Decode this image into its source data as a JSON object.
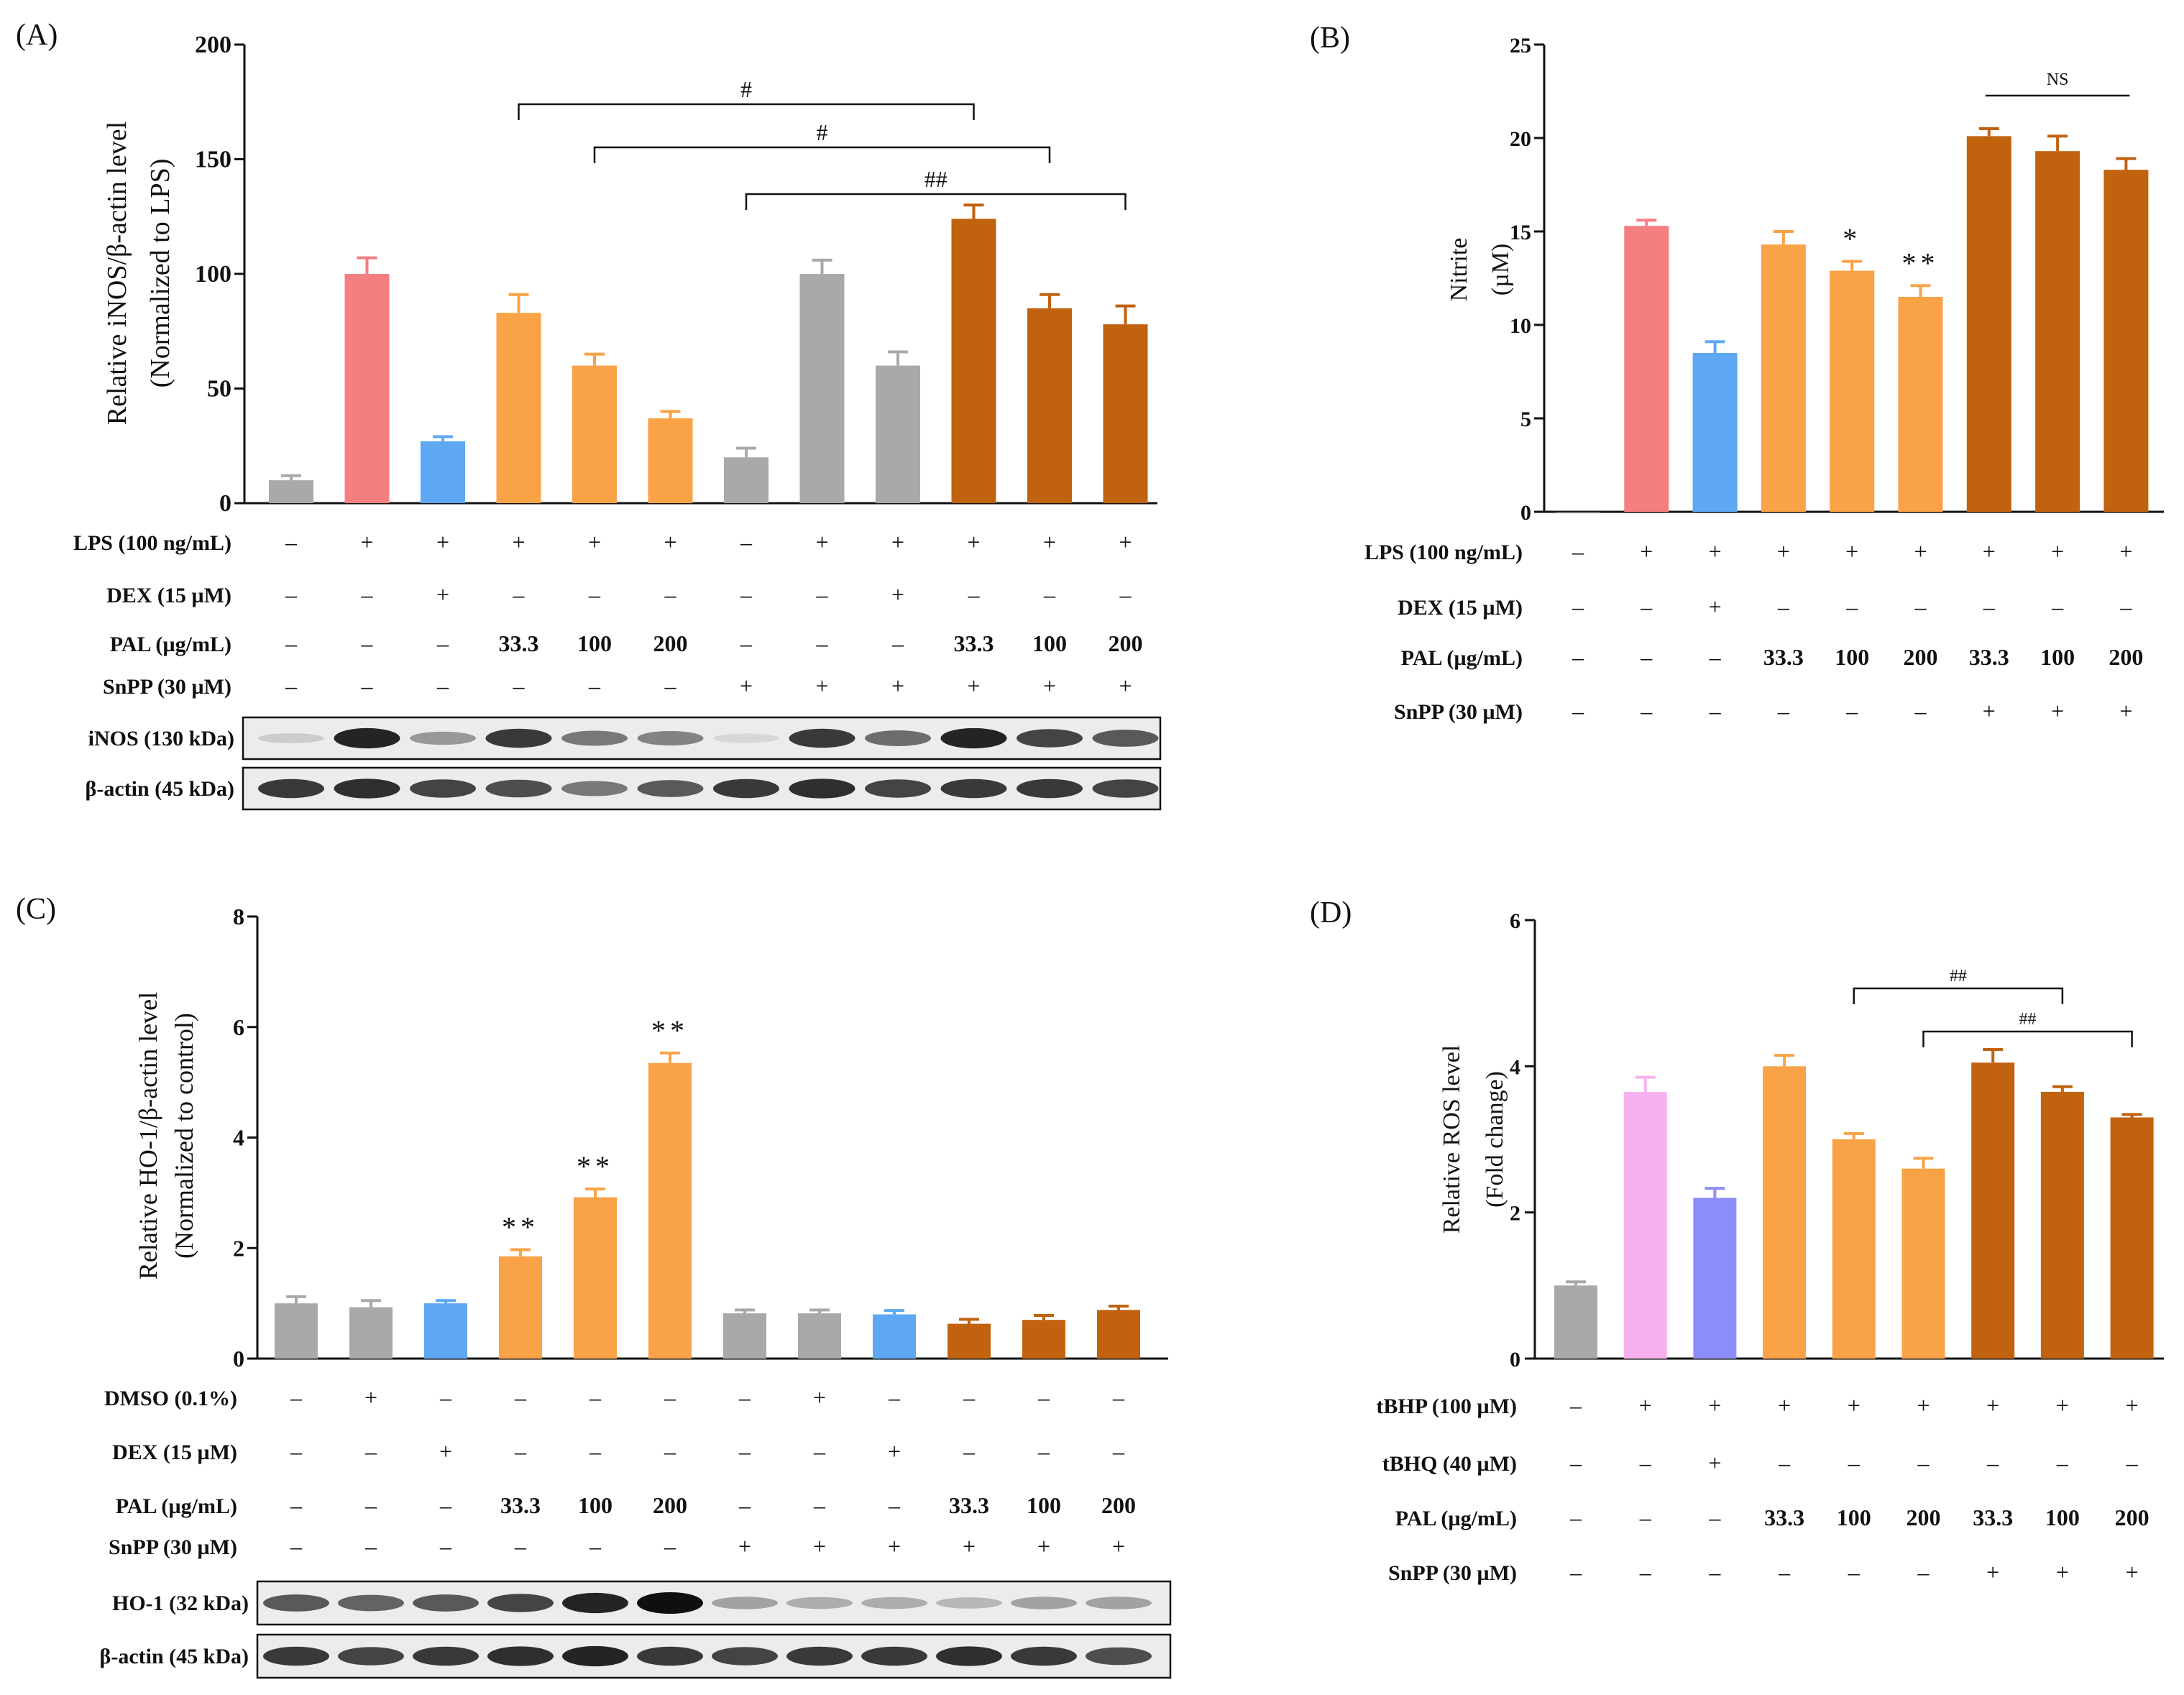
{
  "chart_data": [
    {
      "panel": "(A)",
      "type": "bar",
      "ylabel": [
        "Relative iNOS/β-actin level",
        "(Normalized to LPS)"
      ],
      "ylim": [
        0,
        200
      ],
      "yticks": [
        0,
        50,
        100,
        150,
        200
      ],
      "values": [
        10,
        100,
        27,
        83,
        60,
        37,
        20,
        100,
        60,
        124,
        85,
        78
      ],
      "errors": [
        2,
        7,
        2,
        8,
        5,
        3,
        4,
        6,
        6,
        6,
        6,
        8
      ],
      "colors": [
        "#a9a9ab",
        "#f47f81",
        "#5ea7f2",
        "#f9a246",
        "#f9a246",
        "#f9a246",
        "#a9a9ab",
        "#a9a9ab",
        "#a9a9ab",
        "#c1620f",
        "#c1620f",
        "#c1620f"
      ],
      "treatments": [
        {
          "label": "LPS (100 ng/mL)",
          "cells": [
            "–",
            "+",
            "+",
            "+",
            "+",
            "+",
            "–",
            "+",
            "+",
            "+",
            "+",
            "+"
          ]
        },
        {
          "label": "DEX (15 µM)",
          "cells": [
            "–",
            "–",
            "+",
            "–",
            "–",
            "–",
            "–",
            "–",
            "+",
            "–",
            "–",
            "–"
          ]
        },
        {
          "label": "PAL (µg/mL)",
          "cells": [
            "–",
            "–",
            "–",
            "33.3",
            "100",
            "200",
            "–",
            "–",
            "–",
            "33.3",
            "100",
            "200"
          ]
        },
        {
          "label": "SnPP (30 µM)",
          "cells": [
            "–",
            "–",
            "–",
            "–",
            "–",
            "–",
            "+",
            "+",
            "+",
            "+",
            "+",
            "+"
          ]
        }
      ],
      "brackets": [
        {
          "from": 3,
          "to": 9,
          "label": "#"
        },
        {
          "from": 4,
          "to": 10,
          "label": "#"
        },
        {
          "from": 6,
          "to": 11,
          "label": "##"
        }
      ],
      "blots": [
        {
          "label": "iNOS (130 kDa)",
          "intensity": [
            0.1,
            0.9,
            0.35,
            0.8,
            0.5,
            0.45,
            0.05,
            0.8,
            0.55,
            0.9,
            0.75,
            0.65
          ]
        },
        {
          "label": "β-actin (45 kDa)",
          "intensity": [
            0.8,
            0.85,
            0.75,
            0.7,
            0.5,
            0.65,
            0.8,
            0.85,
            0.75,
            0.8,
            0.8,
            0.75
          ]
        }
      ]
    },
    {
      "panel": "(B)",
      "type": "bar",
      "ylabel": [
        "Nitrite",
        "(µM)"
      ],
      "ylim": [
        0,
        25
      ],
      "yticks": [
        0,
        5,
        10,
        15,
        20,
        25
      ],
      "values": [
        0,
        15.3,
        8.5,
        14.3,
        12.9,
        11.5,
        20.1,
        19.3,
        18.3
      ],
      "errors": [
        0,
        0.3,
        0.6,
        0.7,
        0.5,
        0.6,
        0.4,
        0.8,
        0.6
      ],
      "colors": [
        "#a9a9ab",
        "#f47f81",
        "#5ea7f2",
        "#f9a246",
        "#f9a246",
        "#f9a246",
        "#c1620f",
        "#c1620f",
        "#c1620f"
      ],
      "annotations": [
        "",
        "",
        "",
        "",
        "*",
        "**",
        "",
        "",
        ""
      ],
      "treatments": [
        {
          "label": "LPS (100 ng/mL)",
          "cells": [
            "–",
            "+",
            "+",
            "+",
            "+",
            "+",
            "+",
            "+",
            "+"
          ]
        },
        {
          "label": "DEX (15 µM)",
          "cells": [
            "–",
            "–",
            "+",
            "–",
            "–",
            "–",
            "–",
            "–",
            "–"
          ]
        },
        {
          "label": "PAL (µg/mL)",
          "cells": [
            "–",
            "–",
            "–",
            "33.3",
            "100",
            "200",
            "33.3",
            "100",
            "200"
          ]
        },
        {
          "label": "SnPP (30 µM)",
          "cells": [
            "–",
            "–",
            "–",
            "–",
            "–",
            "–",
            "+",
            "+",
            "+"
          ]
        }
      ],
      "ns_line": {
        "from": 6,
        "to": 8,
        "label": "NS"
      }
    },
    {
      "panel": "(C)",
      "type": "bar",
      "ylabel": [
        "Relative HO-1/β-actin level",
        "(Normalized to control)"
      ],
      "ylim": [
        0,
        8
      ],
      "yticks": [
        0,
        2,
        4,
        6,
        8
      ],
      "values": [
        1.0,
        0.93,
        1.0,
        1.85,
        2.92,
        5.35,
        0.82,
        0.82,
        0.8,
        0.63,
        0.7,
        0.88
      ],
      "errors": [
        0.12,
        0.12,
        0.05,
        0.12,
        0.15,
        0.18,
        0.06,
        0.06,
        0.07,
        0.08,
        0.08,
        0.07
      ],
      "colors": [
        "#a9a9ab",
        "#a9a9ab",
        "#5ea7f2",
        "#f9a246",
        "#f9a246",
        "#f9a246",
        "#a9a9ab",
        "#a9a9ab",
        "#5ea7f2",
        "#c1620f",
        "#c1620f",
        "#c1620f"
      ],
      "annotations": [
        "",
        "",
        "",
        "**",
        "**",
        "**",
        "",
        "",
        "",
        "",
        "",
        ""
      ],
      "treatments": [
        {
          "label": "DMSO (0.1%)",
          "cells": [
            "–",
            "+",
            "–",
            "–",
            "–",
            "–",
            "–",
            "+",
            "–",
            "–",
            "–",
            "–"
          ]
        },
        {
          "label": "DEX (15 µM)",
          "cells": [
            "–",
            "–",
            "+",
            "–",
            "–",
            "–",
            "–",
            "–",
            "+",
            "–",
            "–",
            "–"
          ]
        },
        {
          "label": "PAL (µg/mL)",
          "cells": [
            "–",
            "–",
            "–",
            "33.3",
            "100",
            "200",
            "–",
            "–",
            "–",
            "33.3",
            "100",
            "200"
          ]
        },
        {
          "label": "SnPP (30 µM)",
          "cells": [
            "–",
            "–",
            "–",
            "–",
            "–",
            "–",
            "+",
            "+",
            "+",
            "+",
            "+",
            "+"
          ]
        }
      ],
      "blots": [
        {
          "label": "HO-1 (32 kDa)",
          "intensity": [
            0.65,
            0.6,
            0.65,
            0.75,
            0.9,
            1.0,
            0.3,
            0.25,
            0.25,
            0.2,
            0.3,
            0.3
          ]
        },
        {
          "label": "β-actin (45 kDa)",
          "intensity": [
            0.8,
            0.75,
            0.8,
            0.85,
            0.9,
            0.8,
            0.75,
            0.8,
            0.8,
            0.85,
            0.8,
            0.7
          ]
        }
      ]
    },
    {
      "panel": "(D)",
      "type": "bar",
      "ylabel": [
        "Relative ROS level",
        "(Fold change)"
      ],
      "ylim": [
        0,
        6
      ],
      "yticks": [
        0,
        2,
        4,
        6
      ],
      "values": [
        1.0,
        3.65,
        2.2,
        4.0,
        3.0,
        2.6,
        4.05,
        3.65,
        3.3
      ],
      "errors": [
        0.05,
        0.2,
        0.13,
        0.15,
        0.08,
        0.14,
        0.18,
        0.07,
        0.04
      ],
      "colors": [
        "#a9a9ab",
        "#f6b2ee",
        "#8d8df9",
        "#f9a246",
        "#f9a246",
        "#f9a246",
        "#c1620f",
        "#c1620f",
        "#c1620f"
      ],
      "treatments": [
        {
          "label": "tBHP (100 µM)",
          "cells": [
            "–",
            "+",
            "+",
            "+",
            "+",
            "+",
            "+",
            "+",
            "+"
          ]
        },
        {
          "label": "tBHQ (40 µM)",
          "cells": [
            "–",
            "–",
            "+",
            "–",
            "–",
            "–",
            "–",
            "–",
            "–"
          ]
        },
        {
          "label": "PAL (µg/mL)",
          "cells": [
            "–",
            "–",
            "–",
            "33.3",
            "100",
            "200",
            "33.3",
            "100",
            "200"
          ]
        },
        {
          "label": "SnPP (30 µM)",
          "cells": [
            "–",
            "–",
            "–",
            "–",
            "–",
            "–",
            "+",
            "+",
            "+"
          ]
        }
      ],
      "brackets": [
        {
          "from": 4,
          "to": 7,
          "label": "##"
        },
        {
          "from": 5,
          "to": 8,
          "label": "##"
        }
      ]
    }
  ]
}
